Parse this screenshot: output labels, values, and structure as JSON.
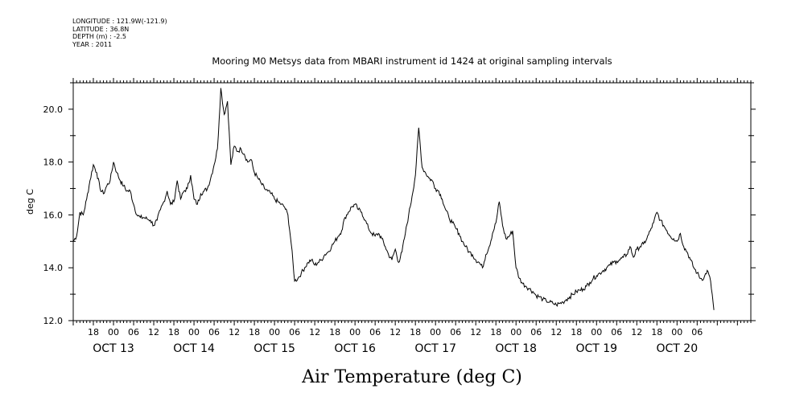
{
  "meta": {
    "longitude": "LONGITUDE : 121.9W(-121.9)",
    "latitude": "LATITUDE : 36.8N",
    "depth": "DEPTH (m) : -2.5",
    "year": "YEAR : 2011"
  },
  "chart_data": {
    "type": "line",
    "title": "Mooring M0 Metsys data from MBARI instrument id 1424 at original sampling intervals",
    "xlabel": "Air Temperature (deg C)",
    "ylabel": "deg C",
    "ylim": [
      12.0,
      21.0
    ],
    "xlim": [
      "2011-10-12T12:00",
      "2011-10-20T22:00"
    ],
    "y_ticks": [
      "12.0",
      "14.0",
      "16.0",
      "18.0",
      "20.0"
    ],
    "hour_ticks": [
      {
        "t": "2011-10-12T18:00",
        "label": "18"
      },
      {
        "t": "2011-10-13T00:00",
        "label": "00"
      },
      {
        "t": "2011-10-13T06:00",
        "label": "06"
      },
      {
        "t": "2011-10-13T12:00",
        "label": "12"
      },
      {
        "t": "2011-10-13T18:00",
        "label": "18"
      },
      {
        "t": "2011-10-14T00:00",
        "label": "00"
      },
      {
        "t": "2011-10-14T06:00",
        "label": "06"
      },
      {
        "t": "2011-10-14T12:00",
        "label": "12"
      },
      {
        "t": "2011-10-14T18:00",
        "label": "18"
      },
      {
        "t": "2011-10-15T00:00",
        "label": "00"
      },
      {
        "t": "2011-10-15T06:00",
        "label": "06"
      },
      {
        "t": "2011-10-15T12:00",
        "label": "12"
      },
      {
        "t": "2011-10-15T18:00",
        "label": "18"
      },
      {
        "t": "2011-10-16T00:00",
        "label": "00"
      },
      {
        "t": "2011-10-16T06:00",
        "label": "06"
      },
      {
        "t": "2011-10-16T12:00",
        "label": "12"
      },
      {
        "t": "2011-10-16T18:00",
        "label": "18"
      },
      {
        "t": "2011-10-17T00:00",
        "label": "00"
      },
      {
        "t": "2011-10-17T06:00",
        "label": "06"
      },
      {
        "t": "2011-10-17T12:00",
        "label": "12"
      },
      {
        "t": "2011-10-17T18:00",
        "label": "18"
      },
      {
        "t": "2011-10-18T00:00",
        "label": "00"
      },
      {
        "t": "2011-10-18T06:00",
        "label": "06"
      },
      {
        "t": "2011-10-18T12:00",
        "label": "12"
      },
      {
        "t": "2011-10-18T18:00",
        "label": "18"
      },
      {
        "t": "2011-10-19T00:00",
        "label": "00"
      },
      {
        "t": "2011-10-19T06:00",
        "label": "06"
      },
      {
        "t": "2011-10-19T12:00",
        "label": "12"
      },
      {
        "t": "2011-10-19T18:00",
        "label": "18"
      },
      {
        "t": "2011-10-20T00:00",
        "label": "00"
      },
      {
        "t": "2011-10-20T06:00",
        "label": "06"
      }
    ],
    "date_labels": [
      {
        "t": "2011-10-13T00:00",
        "label": "OCT 13"
      },
      {
        "t": "2011-10-14T00:00",
        "label": "OCT 14"
      },
      {
        "t": "2011-10-15T00:00",
        "label": "OCT 15"
      },
      {
        "t": "2011-10-16T00:00",
        "label": "OCT 16"
      },
      {
        "t": "2011-10-17T00:00",
        "label": "OCT 17"
      },
      {
        "t": "2011-10-18T00:00",
        "label": "OCT 18"
      },
      {
        "t": "2011-10-19T00:00",
        "label": "OCT 19"
      },
      {
        "t": "2011-10-20T00:00",
        "label": "OCT 20"
      }
    ],
    "series": [
      {
        "x": [
          "2011-10-12T12:00",
          "2011-10-12T13:00",
          "2011-10-12T14:00",
          "2011-10-12T15:00",
          "2011-10-12T16:00",
          "2011-10-12T17:00",
          "2011-10-12T18:00",
          "2011-10-12T19:00",
          "2011-10-12T20:00",
          "2011-10-12T21:00",
          "2011-10-12T22:00",
          "2011-10-12T23:00",
          "2011-10-13T00:00",
          "2011-10-13T01:00",
          "2011-10-13T02:00",
          "2011-10-13T03:00",
          "2011-10-13T04:00",
          "2011-10-13T05:00",
          "2011-10-13T06:00",
          "2011-10-13T07:00",
          "2011-10-13T08:00",
          "2011-10-13T09:00",
          "2011-10-13T10:00",
          "2011-10-13T11:00",
          "2011-10-13T12:00",
          "2011-10-13T13:00",
          "2011-10-13T14:00",
          "2011-10-13T15:00",
          "2011-10-13T16:00",
          "2011-10-13T17:00",
          "2011-10-13T18:00",
          "2011-10-13T19:00",
          "2011-10-13T20:00",
          "2011-10-13T21:00",
          "2011-10-13T22:00",
          "2011-10-13T23:00",
          "2011-10-14T00:00",
          "2011-10-14T01:00",
          "2011-10-14T02:00",
          "2011-10-14T03:00",
          "2011-10-14T04:00",
          "2011-10-14T05:00",
          "2011-10-14T06:00",
          "2011-10-14T07:00",
          "2011-10-14T08:00",
          "2011-10-14T09:00",
          "2011-10-14T10:00",
          "2011-10-14T11:00",
          "2011-10-14T12:00",
          "2011-10-14T13:00",
          "2011-10-14T14:00",
          "2011-10-14T15:00",
          "2011-10-14T16:00",
          "2011-10-14T17:00",
          "2011-10-14T18:00",
          "2011-10-14T19:00",
          "2011-10-14T20:00",
          "2011-10-14T21:00",
          "2011-10-14T22:00",
          "2011-10-14T23:00",
          "2011-10-15T00:00",
          "2011-10-15T01:00",
          "2011-10-15T02:00",
          "2011-10-15T03:00",
          "2011-10-15T04:00",
          "2011-10-15T05:00",
          "2011-10-15T06:00",
          "2011-10-15T07:00",
          "2011-10-15T08:00",
          "2011-10-15T09:00",
          "2011-10-15T10:00",
          "2011-10-15T11:00",
          "2011-10-15T12:00",
          "2011-10-15T13:00",
          "2011-10-15T14:00",
          "2011-10-15T15:00",
          "2011-10-15T16:00",
          "2011-10-15T17:00",
          "2011-10-15T18:00",
          "2011-10-15T19:00",
          "2011-10-15T20:00",
          "2011-10-15T21:00",
          "2011-10-15T22:00",
          "2011-10-15T23:00",
          "2011-10-16T00:00",
          "2011-10-16T01:00",
          "2011-10-16T02:00",
          "2011-10-16T03:00",
          "2011-10-16T04:00",
          "2011-10-16T05:00",
          "2011-10-16T06:00",
          "2011-10-16T07:00",
          "2011-10-16T08:00",
          "2011-10-16T09:00",
          "2011-10-16T10:00",
          "2011-10-16T11:00",
          "2011-10-16T12:00",
          "2011-10-16T13:00",
          "2011-10-16T14:00",
          "2011-10-16T15:00",
          "2011-10-16T16:00",
          "2011-10-16T17:00",
          "2011-10-16T18:00",
          "2011-10-16T19:00",
          "2011-10-16T20:00",
          "2011-10-16T21:00",
          "2011-10-16T22:00",
          "2011-10-16T23:00",
          "2011-10-17T00:00",
          "2011-10-17T01:00",
          "2011-10-17T02:00",
          "2011-10-17T03:00",
          "2011-10-17T04:00",
          "2011-10-17T05:00",
          "2011-10-17T06:00",
          "2011-10-17T07:00",
          "2011-10-17T08:00",
          "2011-10-17T09:00",
          "2011-10-17T10:00",
          "2011-10-17T11:00",
          "2011-10-17T12:00",
          "2011-10-17T13:00",
          "2011-10-17T14:00",
          "2011-10-17T15:00",
          "2011-10-17T16:00",
          "2011-10-17T17:00",
          "2011-10-17T18:00",
          "2011-10-17T19:00",
          "2011-10-17T20:00",
          "2011-10-17T21:00",
          "2011-10-17T22:00",
          "2011-10-17T23:00",
          "2011-10-18T00:00",
          "2011-10-18T01:00",
          "2011-10-18T02:00",
          "2011-10-18T03:00",
          "2011-10-18T04:00",
          "2011-10-18T05:00",
          "2011-10-18T06:00",
          "2011-10-18T07:00",
          "2011-10-18T08:00",
          "2011-10-18T09:00",
          "2011-10-18T10:00",
          "2011-10-18T11:00",
          "2011-10-18T12:00",
          "2011-10-18T13:00",
          "2011-10-18T14:00",
          "2011-10-18T15:00",
          "2011-10-18T16:00",
          "2011-10-18T17:00",
          "2011-10-18T18:00",
          "2011-10-18T19:00",
          "2011-10-18T20:00",
          "2011-10-18T21:00",
          "2011-10-18T22:00",
          "2011-10-18T23:00",
          "2011-10-19T00:00",
          "2011-10-19T01:00",
          "2011-10-19T02:00",
          "2011-10-19T03:00",
          "2011-10-19T04:00",
          "2011-10-19T05:00",
          "2011-10-19T06:00",
          "2011-10-19T07:00",
          "2011-10-19T08:00",
          "2011-10-19T09:00",
          "2011-10-19T10:00",
          "2011-10-19T11:00",
          "2011-10-19T12:00",
          "2011-10-19T13:00",
          "2011-10-19T14:00",
          "2011-10-19T15:00",
          "2011-10-19T16:00",
          "2011-10-19T17:00",
          "2011-10-19T18:00",
          "2011-10-19T19:00",
          "2011-10-19T20:00",
          "2011-10-19T21:00",
          "2011-10-19T22:00",
          "2011-10-19T23:00",
          "2011-10-20T00:00",
          "2011-10-20T01:00",
          "2011-10-20T02:00",
          "2011-10-20T03:00",
          "2011-10-20T04:00",
          "2011-10-20T05:00",
          "2011-10-20T06:00",
          "2011-10-20T07:00",
          "2011-10-20T08:00",
          "2011-10-20T09:00",
          "2011-10-20T10:00",
          "2011-10-20T11:00"
        ],
        "y": [
          15.0,
          15.2,
          16.1,
          16.0,
          16.6,
          17.3,
          17.9,
          17.6,
          17.0,
          16.8,
          17.1,
          17.3,
          18.0,
          17.6,
          17.3,
          17.1,
          16.9,
          16.9,
          16.4,
          16.0,
          15.9,
          15.9,
          15.85,
          15.8,
          15.6,
          15.8,
          16.2,
          16.5,
          16.9,
          16.4,
          16.5,
          17.3,
          16.6,
          16.9,
          17.0,
          17.5,
          16.6,
          16.4,
          16.8,
          16.9,
          17.0,
          17.4,
          17.9,
          18.5,
          20.8,
          19.8,
          20.3,
          17.9,
          18.6,
          18.4,
          18.5,
          18.3,
          18.0,
          18.1,
          17.6,
          17.4,
          17.2,
          17.0,
          16.9,
          16.8,
          16.6,
          16.5,
          16.4,
          16.3,
          16.0,
          14.9,
          13.5,
          13.6,
          13.8,
          14.0,
          14.2,
          14.3,
          14.1,
          14.2,
          14.3,
          14.5,
          14.6,
          14.8,
          15.0,
          15.2,
          15.4,
          15.9,
          16.1,
          16.3,
          16.4,
          16.2,
          16.1,
          15.8,
          15.5,
          15.3,
          15.2,
          15.3,
          15.1,
          14.8,
          14.5,
          14.3,
          14.7,
          14.2,
          14.6,
          15.3,
          16.0,
          16.7,
          17.5,
          19.3,
          17.8,
          17.6,
          17.4,
          17.3,
          17.0,
          16.9,
          16.6,
          16.2,
          15.9,
          15.7,
          15.5,
          15.3,
          15.0,
          14.8,
          14.6,
          14.5,
          14.3,
          14.2,
          14.0,
          14.5,
          14.8,
          15.3,
          15.7,
          16.5,
          15.6,
          15.1,
          15.2,
          15.4,
          14.0,
          13.6,
          13.4,
          13.3,
          13.2,
          13.1,
          12.95,
          12.9,
          12.8,
          12.75,
          12.7,
          12.65,
          12.6,
          12.65,
          12.7,
          12.8,
          12.9,
          13.0,
          13.1,
          13.15,
          13.2,
          13.3,
          13.45,
          13.6,
          13.7,
          13.8,
          13.9,
          14.0,
          14.1,
          14.2,
          14.25,
          14.3,
          14.4,
          14.5,
          14.8,
          14.4,
          14.7,
          14.8,
          14.9,
          15.1,
          15.4,
          15.7,
          16.1,
          15.8,
          15.6,
          15.4,
          15.2,
          15.1,
          15.0,
          15.3,
          14.8,
          14.6,
          14.3,
          14.0,
          13.8,
          13.6,
          13.6,
          13.9,
          13.5,
          12.4
        ]
      }
    ]
  }
}
